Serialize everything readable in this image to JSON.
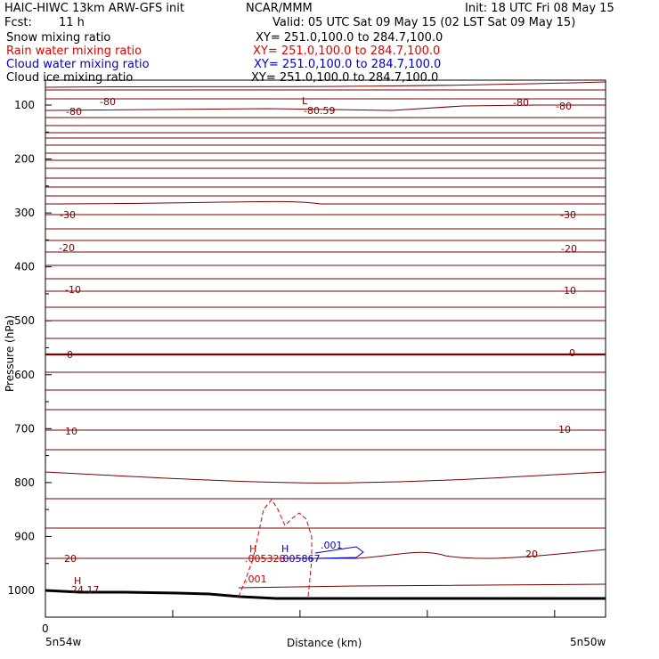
{
  "header": {
    "title": "HAIC-HIWC 13km ARW-GFS init",
    "center": "NCAR/MMM",
    "init": "Init: 18 UTC Fri 08 May 15",
    "fcst_label": "Fcst:",
    "fcst_value": "11 h",
    "valid": "Valid: 05 UTC Sat 09 May 15 (02 LST Sat 09 May 15)"
  },
  "fields": [
    {
      "name": "Snow mixing ratio",
      "xy": "XY= 251.0,100.0 to 284.7,100.0",
      "color": "#000000"
    },
    {
      "name": "Rain water mixing ratio",
      "xy": "XY= 251.0,100.0 to 284.7,100.0",
      "color": "#e00000"
    },
    {
      "name": "Cloud water mixing ratio",
      "xy": "XY= 251.0,100.0 to 284.7,100.0",
      "color": "#0000cc"
    },
    {
      "name": "Cloud ice mixing ratio",
      "xy": "XY= 251.0,100.0 to 284.7,100.0",
      "color": "#000000"
    }
  ],
  "chart_data": {
    "type": "line",
    "xlabel": "Distance (km)",
    "ylabel": "Pressure (hPa)",
    "x_tick_labels": {
      "origin": "0",
      "left": "5n54w",
      "right": "5n50w"
    },
    "y_ticks": [
      "100",
      "200",
      "300",
      "400",
      "500",
      "600",
      "700",
      "800",
      "900",
      "1000"
    ],
    "ylim": [
      1050,
      70
    ],
    "temperature_contour_labels": [
      {
        "label": "-80",
        "p": 93
      },
      {
        "label": "-80",
        "p": 110
      },
      {
        "label": "-30",
        "p": 302
      },
      {
        "label": "-20",
        "p": 365
      },
      {
        "label": "-10",
        "p": 440
      },
      {
        "label": "0",
        "p": 562
      },
      {
        "label": "10",
        "p": 704
      },
      {
        "label": "20",
        "p": 938
      }
    ],
    "extrema": [
      {
        "mark": "L",
        "value": "-80.59",
        "color": "#7a0000"
      },
      {
        "mark": "H",
        "value": ".005328",
        "color": "#c00000"
      },
      {
        "mark": "H",
        "value": ".005867",
        "color": "#0000cc"
      },
      {
        "mark": "H",
        "value": "24.17",
        "color": "#7a0000"
      }
    ],
    "rain_contour_label": ".001",
    "cloud_water_contour_label": ".001",
    "colors": {
      "temperature": "#7a0000",
      "rain": "#e00000",
      "cloud_water": "#0000cc",
      "terrain": "#000000"
    }
  }
}
